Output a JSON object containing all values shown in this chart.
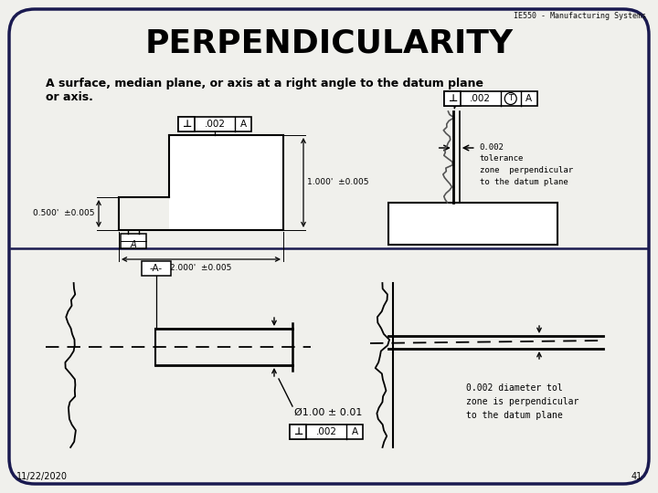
{
  "title": "PERPENDICULARITY",
  "subtitle_line1": "A surface, median plane, or axis at a right angle to the datum plane",
  "subtitle_line2": "or axis.",
  "header": "IE550 - Manufacturing Systems",
  "footer_date": "11/22/2020",
  "footer_page": "41",
  "bg": "#f0f0ec",
  "border": "#1a1a50",
  "tl_dim1": "0.500'  ±0.005",
  "tl_dim2": "1.000'  ±0.005",
  "tl_dim3": "2.000'  ±0.005",
  "tr_note": "0.002\ntolerance\nzone  perpendicular\nto the datum plane",
  "bl_dim": "Ø1.00 ± 0.01",
  "br_note": "0.002 diameter tol\nzone is perpendicular\nto the datum plane"
}
